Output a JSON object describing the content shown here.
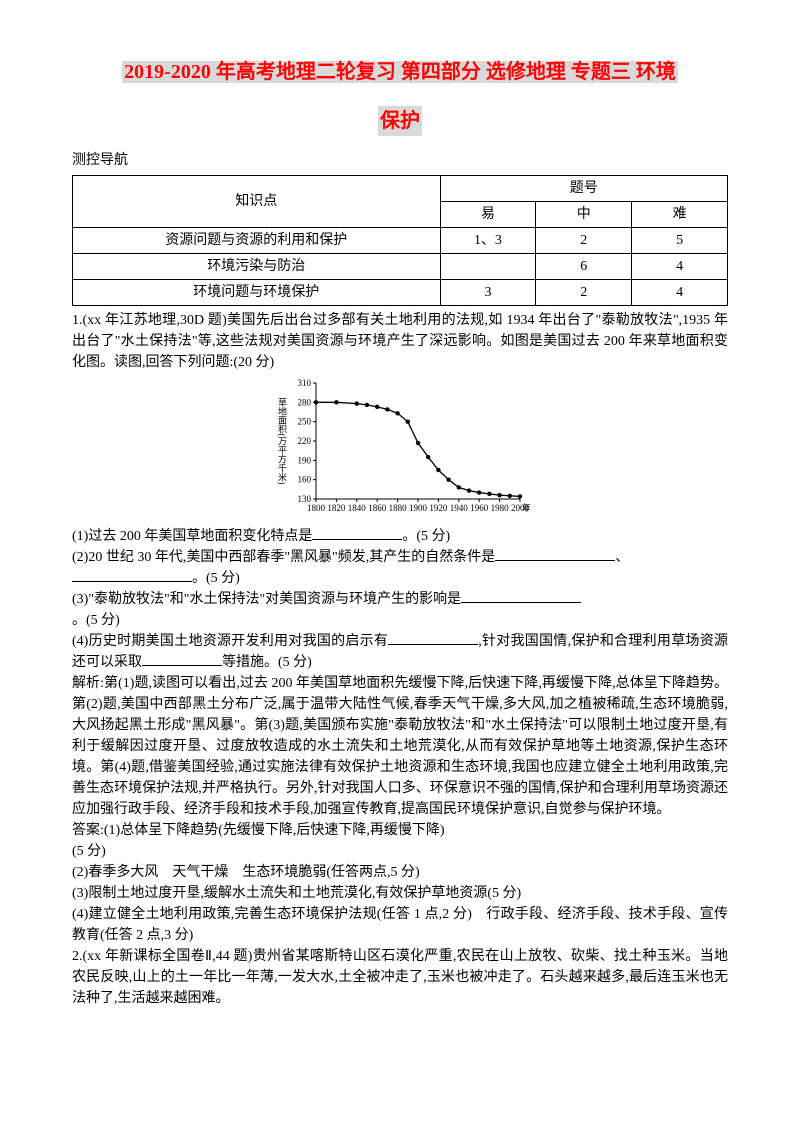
{
  "title_line1": "2019-2020 年高考地理二轮复习 第四部分 选修地理 专题三 环境",
  "title_line2": "保护",
  "section_label": "测控导航",
  "table": {
    "header_kp": "知识点",
    "header_qn": "题号",
    "sub_easy": "易",
    "sub_mid": "中",
    "sub_hard": "难",
    "rows": [
      {
        "kp": "资源问题与资源的利用和保护",
        "easy": "1、3",
        "mid": "2",
        "hard": "5"
      },
      {
        "kp": "环境污染与防治",
        "easy": "",
        "mid": "6",
        "hard": "4"
      },
      {
        "kp": "环境问题与环境保护",
        "easy": "3",
        "mid": "2",
        "hard": "4"
      }
    ]
  },
  "q1_intro": "1.(xx 年江苏地理,30D 题)美国先后出台过多部有关土地利用的法规,如 1934 年出台了\"泰勒放牧法\",1935 年出台了\"水土保持法\"等,这些法规对美国资源与环境产生了深远影响。如图是美国过去 200 年来草地面积变化图。读图,回答下列问题:(20 分)",
  "chart": {
    "ylabel": "草地面积(万平方千米)",
    "yticks": [
      130,
      160,
      190,
      220,
      250,
      280,
      310
    ],
    "xticks": [
      1800,
      1820,
      1840,
      1860,
      1880,
      1900,
      1920,
      1940,
      1960,
      1980,
      2000
    ],
    "xunit": "年",
    "points": [
      {
        "x": 1800,
        "y": 280
      },
      {
        "x": 1820,
        "y": 280
      },
      {
        "x": 1840,
        "y": 278
      },
      {
        "x": 1850,
        "y": 276
      },
      {
        "x": 1860,
        "y": 273
      },
      {
        "x": 1870,
        "y": 269
      },
      {
        "x": 1880,
        "y": 263
      },
      {
        "x": 1890,
        "y": 250
      },
      {
        "x": 1900,
        "y": 217
      },
      {
        "x": 1910,
        "y": 195
      },
      {
        "x": 1920,
        "y": 175
      },
      {
        "x": 1930,
        "y": 160
      },
      {
        "x": 1940,
        "y": 148
      },
      {
        "x": 1950,
        "y": 143
      },
      {
        "x": 1960,
        "y": 140
      },
      {
        "x": 1970,
        "y": 138
      },
      {
        "x": 1980,
        "y": 136
      },
      {
        "x": 1990,
        "y": 135
      },
      {
        "x": 2000,
        "y": 134
      }
    ],
    "line_color": "#000000",
    "marker_color": "#000000",
    "bg": "#ffffff",
    "font_size": 9
  },
  "q1_1a": "(1)过去 200 年美国草地面积变化特点是",
  "q1_1b": "。(5 分)",
  "q1_2a": "(2)20 世纪 30 年代,美国中西部春季\"黑风暴\"频发,其产生的自然条件是",
  "q1_2b": "、",
  "q1_2c": "。(5 分)",
  "q1_3a": "(3)\"泰勒放牧法\"和\"水土保持法\"对美国资源与环境产生的影响是",
  "q1_3b": "。(5 分)",
  "q1_4a": "(4)历史时期美国土地资源开发利用对我国的启示有",
  "q1_4b": ",针对我国国情,保护和合理利用草场资源还可以采取",
  "q1_4c": "等措施。(5 分)",
  "analysis": "解析:第(1)题,读图可以看出,过去 200 年美国草地面积先缓慢下降,后快速下降,再缓慢下降,总体呈下降趋势。第(2)题,美国中西部黑土分布广泛,属于温带大陆性气候,春季天气干燥,多大风,加之植被稀疏,生态环境脆弱,大风扬起黑土形成\"黑风暴\"。第(3)题,美国颁布实施\"泰勒放牧法\"和\"水土保持法\"可以限制土地过度开垦,有利于缓解因过度开垦、过度放牧造成的水土流失和土地荒漠化,从而有效保护草地等土地资源,保护生态环境。第(4)题,借鉴美国经验,通过实施法律有效保护土地资源和生态环境,我国也应建立健全土地利用政策,完善生态环境保护法规,并严格执行。另外,针对我国人口多、环保意识不强的国情,保护和合理利用草场资源还应加强行政手段、经济手段和技术手段,加强宣传教育,提高国民环境保护意识,自觉参与保护环境。",
  "ans_label": "答案:(1)总体呈下降趋势(先缓慢下降,后快速下降,再缓慢下降)",
  "ans_pts": "(5 分)",
  "ans2": "(2)春季多大风　天气干燥　生态环境脆弱(任答两点,5 分)",
  "ans3": "(3)限制土地过度开垦,缓解水土流失和土地荒漠化,有效保护草地资源(5 分)",
  "ans4": "(4)建立健全土地利用政策,完善生态环境保护法规(任答 1 点,2 分)　行政手段、经济手段、技术手段、宣传教育(任答 2 点,3 分)",
  "q2_intro": "2.(xx 年新课标全国卷Ⅱ,44 题)贵州省某喀斯特山区石漠化严重,农民在山上放牧、砍柴、找土种玉米。当地农民反映,山上的土一年比一年薄,一发大水,土全被冲走了,玉米也被冲走了。石头越来越多,最后连玉米也无法种了,生活越来越困难。"
}
